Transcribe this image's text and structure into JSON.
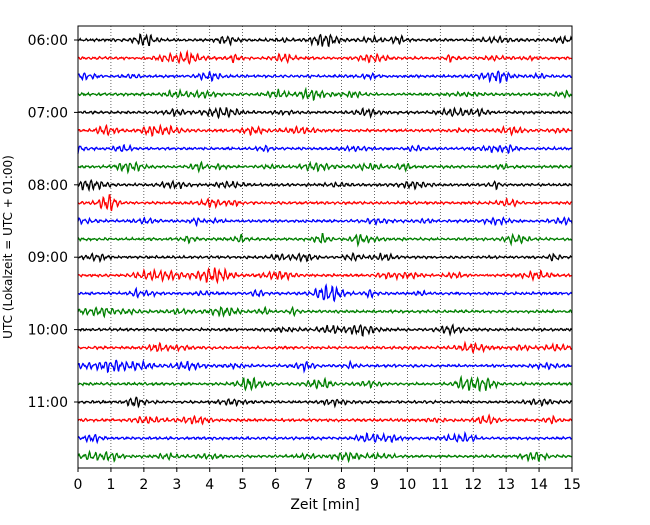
{
  "chart_data": {
    "type": "line",
    "subtype": "helicorder",
    "title": "",
    "xlabel": "Zeit  [min]",
    "ylabel": "UTC (Lokalzeit = UTC + 01:00)",
    "xlim": [
      0,
      15
    ],
    "x_ticks": [
      0,
      1,
      2,
      3,
      4,
      5,
      6,
      7,
      8,
      9,
      10,
      11,
      12,
      13,
      14,
      15
    ],
    "grid_x": true,
    "grid_style": "dotted",
    "y_ticks": [
      "06:00",
      "07:00",
      "08:00",
      "09:00",
      "10:00",
      "11:00"
    ],
    "trace_interval_minutes": 15,
    "trace_colors": [
      "#000000",
      "#ff0000",
      "#0000ff",
      "#008000"
    ],
    "traces": [
      {
        "start": "06:00",
        "color": "#000000"
      },
      {
        "start": "06:15",
        "color": "#ff0000"
      },
      {
        "start": "06:30",
        "color": "#0000ff"
      },
      {
        "start": "06:45",
        "color": "#008000"
      },
      {
        "start": "07:00",
        "color": "#000000"
      },
      {
        "start": "07:15",
        "color": "#ff0000"
      },
      {
        "start": "07:30",
        "color": "#0000ff"
      },
      {
        "start": "07:45",
        "color": "#008000"
      },
      {
        "start": "08:00",
        "color": "#000000"
      },
      {
        "start": "08:15",
        "color": "#ff0000"
      },
      {
        "start": "08:30",
        "color": "#0000ff"
      },
      {
        "start": "08:45",
        "color": "#008000"
      },
      {
        "start": "09:00",
        "color": "#000000"
      },
      {
        "start": "09:15",
        "color": "#ff0000"
      },
      {
        "start": "09:30",
        "color": "#0000ff"
      },
      {
        "start": "09:45",
        "color": "#008000"
      },
      {
        "start": "10:00",
        "color": "#000000"
      },
      {
        "start": "10:15",
        "color": "#ff0000"
      },
      {
        "start": "10:30",
        "color": "#0000ff"
      },
      {
        "start": "10:45",
        "color": "#008000"
      },
      {
        "start": "11:00",
        "color": "#000000"
      },
      {
        "start": "11:15",
        "color": "#ff0000"
      },
      {
        "start": "11:30",
        "color": "#0000ff"
      },
      {
        "start": "11:45",
        "color": "#008000"
      }
    ]
  }
}
